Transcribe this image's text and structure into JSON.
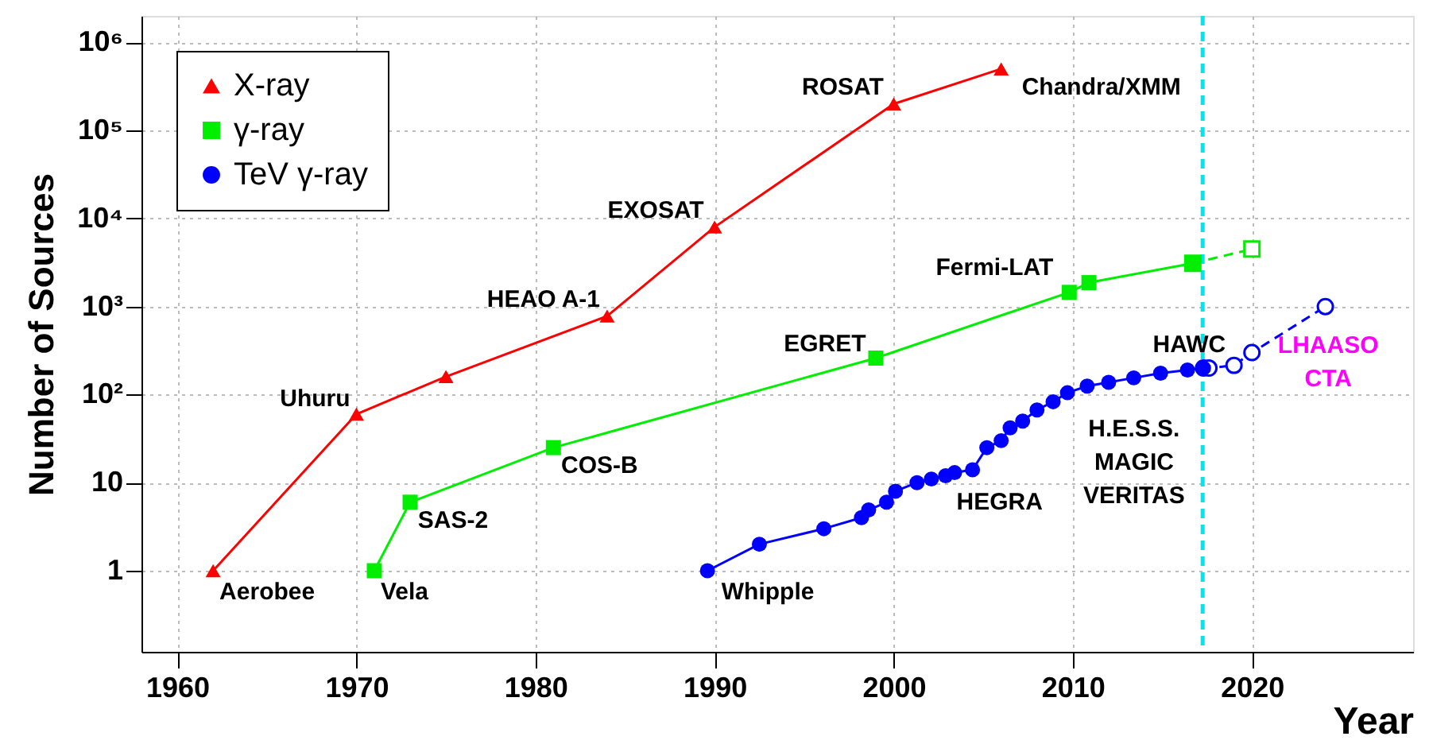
{
  "chart_data": {
    "type": "line",
    "xlabel": "Year",
    "ylabel": "Number of Sources",
    "xlim": [
      1958,
      2029
    ],
    "xticks": [
      1960,
      1970,
      1980,
      1990,
      2000,
      2010,
      2020
    ],
    "ylim": [
      0.12,
      2000000
    ],
    "yticks": [
      1,
      10,
      {
        "value": 100,
        "label": "10²"
      },
      {
        "value": 1000,
        "label": "10³"
      },
      {
        "value": 10000,
        "label": "10⁴"
      },
      {
        "value": 100000,
        "label": "10⁵"
      },
      {
        "value": 1000000,
        "label": "10⁶"
      }
    ],
    "log": true,
    "grid": true,
    "legend": "top left",
    "series": [
      {
        "name": "X-ray",
        "color": "#ff0000",
        "marker": "triangle",
        "line_style": "solid",
        "x": [
          1962,
          1970,
          1975,
          1984,
          1990,
          2000,
          2006
        ],
        "values": [
          1,
          60,
          160,
          780,
          8000,
          200000,
          500000
        ]
      },
      {
        "name": "γ-ray",
        "color": "#00ee00",
        "marker": "square",
        "line_style": "solid",
        "x": [
          1971,
          1973,
          1981,
          1999,
          2009.8,
          2010.9,
          2016.7
        ],
        "values": [
          1,
          6,
          25,
          260,
          1450,
          1870,
          3100
        ]
      },
      {
        "name": "TeV γ-ray",
        "color": "#0000ff",
        "marker": "circle",
        "line_style": "solid",
        "x": [
          1989.6,
          1992.5,
          1996.1,
          1998.2,
          1998.6,
          1999.6,
          2000.1,
          2001.3,
          2002.1,
          2002.9,
          2003.4,
          2004.4,
          2005.2,
          2006.0,
          2006.5,
          2007.2,
          2008.0,
          2008.9,
          2009.7,
          2010.8,
          2012.0,
          2013.4,
          2014.9,
          2016.4,
          2017.3
        ],
        "values": [
          1,
          2,
          3,
          4,
          4.9,
          6,
          8,
          10,
          11,
          12,
          13,
          14,
          25,
          30,
          42,
          50,
          67,
          83,
          105,
          125,
          138,
          155,
          175,
          190,
          200
        ]
      },
      {
        "color": "#00ee00",
        "marker": "square",
        "line_style": "dashed",
        "x": [
          2016.7,
          2020.0
        ],
        "values": [
          3100,
          4500
        ]
      },
      {
        "color": "#0000ff",
        "marker": "circle",
        "line_style": "dashed",
        "x": [
          2017.3,
          2017.6,
          2019.0,
          2020.0,
          2024.1
        ],
        "values": [
          200,
          200,
          215,
          300,
          1000
        ]
      }
    ],
    "ref_lines": [
      {
        "axis": "x",
        "value": 2017.25,
        "color": "#00e5ee",
        "line_style": "dashed"
      }
    ],
    "annotations": [
      {
        "text": "Aerobee",
        "x": 1962,
        "y": 1
      },
      {
        "text": "Vela",
        "x": 1971,
        "y": 1
      },
      {
        "text": "SAS-2",
        "x": 1973,
        "y": 6
      },
      {
        "text": "COS-B",
        "x": 1981,
        "y": 25
      },
      {
        "text": "Uhuru",
        "x": 1970,
        "y": 60
      },
      {
        "text": "HEAO A-1",
        "x": 1984,
        "y": 780
      },
      {
        "text": "EXOSAT",
        "x": 1990,
        "y": 8000
      },
      {
        "text": "ROSAT",
        "x": 2000,
        "y": 200000
      },
      {
        "text": "Chandra/XMM",
        "x": 2006,
        "y": 500000
      },
      {
        "text": "EGRET",
        "x": 1999,
        "y": 260
      },
      {
        "text": "Fermi-LAT",
        "x": 2009.8,
        "y": 1450
      },
      {
        "text": "Whipple",
        "x": 1989.6,
        "y": 1
      },
      {
        "text": "HEGRA",
        "x": 2004.4,
        "y": 14
      },
      {
        "text": "H.E.S.S.\nMAGIC\nVERITAS",
        "x": 2012.0,
        "y": 138
      },
      {
        "text": "HAWC",
        "x": 2017.3,
        "y": 200
      },
      {
        "text": "LHAASO\nCTA",
        "x": 2020.0,
        "y": 300
      }
    ]
  }
}
